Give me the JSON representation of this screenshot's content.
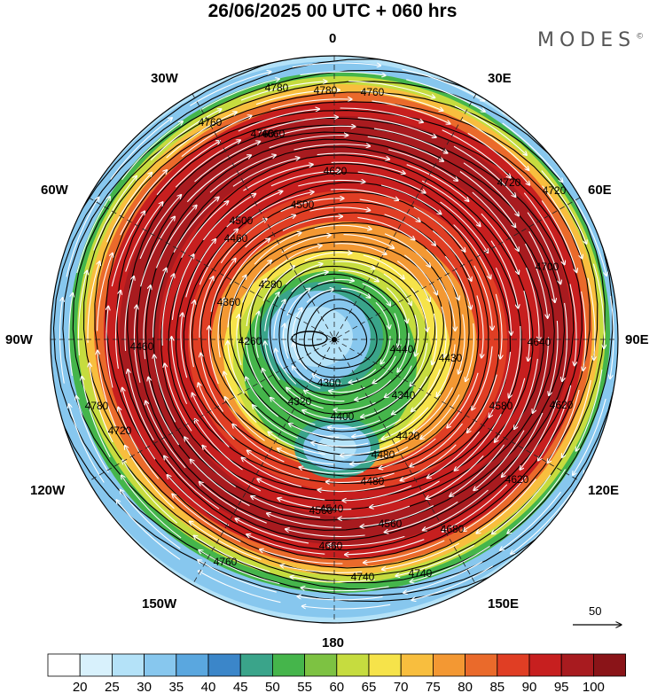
{
  "header": {
    "title": "26/06/2025  00 UTC  + 060 hrs",
    "brand": "MODES",
    "brand_mark": "©"
  },
  "longitude_labels": {
    "n": "0",
    "e30": "30E",
    "e60": "60E",
    "e90": "90E",
    "e120": "120E",
    "e150": "150E",
    "s": "180",
    "w150": "150W",
    "w120": "120W",
    "w90": "90W",
    "w60": "60W",
    "w30": "30W"
  },
  "contour_labels": [
    "4780",
    "4780",
    "4760",
    "4760",
    "4720",
    "4660",
    "4620",
    "4500",
    "4460",
    "4360",
    "4260",
    "4280",
    "4300",
    "4320",
    "4340",
    "4400",
    "4420",
    "4440",
    "4480",
    "4540",
    "4580",
    "4620",
    "4640",
    "4620",
    "4660",
    "4680",
    "4700",
    "4720",
    "4740",
    "4740",
    "4780",
    "4760",
    "4760",
    "4720",
    "4560",
    "4560",
    "4500",
    "4460",
    "4480",
    "4430"
  ],
  "reference_vector": {
    "label": "50"
  },
  "colorbar": {
    "labels": [
      "20",
      "25",
      "30",
      "35",
      "40",
      "45",
      "50",
      "55",
      "60",
      "65",
      "70",
      "75",
      "80",
      "85",
      "90",
      "95",
      "100"
    ],
    "colors": [
      "#ffffff",
      "#d8f1fc",
      "#b4e2f8",
      "#87c7ee",
      "#5aa7df",
      "#3b86c9",
      "#3aa48a",
      "#45b54b",
      "#7dc242",
      "#c6dc3f",
      "#f6e34a",
      "#f8be3e",
      "#f39833",
      "#ea6a2b",
      "#e03e24",
      "#c71f1f",
      "#a81b1f",
      "#8a1418"
    ]
  }
}
